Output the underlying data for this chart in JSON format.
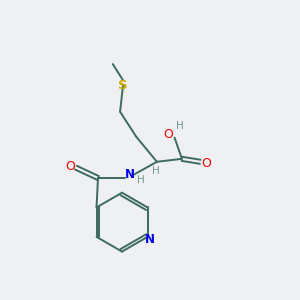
{
  "bg_color": "#eef0f2",
  "bond_color": "#3d6b5e",
  "colors": {
    "C": "#3d6b5e",
    "N": "#0000ee",
    "O": "#ee0000",
    "S": "#ccaa00",
    "H": "#6b9a90"
  },
  "figsize": [
    3.0,
    3.0
  ],
  "dpi": 100
}
